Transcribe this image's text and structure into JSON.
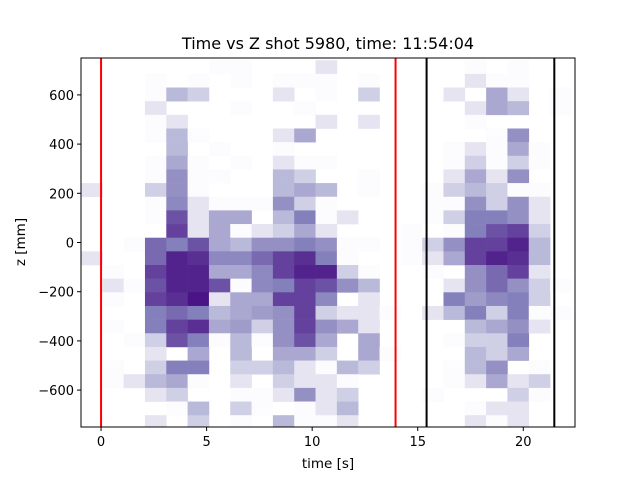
{
  "chart_data": {
    "type": "heatmap",
    "title": "Time vs Z shot 5980, time: 11:54:04",
    "xlabel": "time [s]",
    "ylabel": "z [mm]",
    "xlim": [
      -0.95,
      22.45
    ],
    "ylim": [
      -750,
      750
    ],
    "xticks": [
      0,
      5,
      10,
      15,
      20
    ],
    "xtick_labels": [
      "0",
      "5",
      "10",
      "15",
      "20"
    ],
    "yticks": [
      600,
      400,
      200,
      0,
      -200,
      -400,
      -600
    ],
    "ytick_labels": [
      "600",
      "400",
      "200",
      "0",
      "−200",
      "−400",
      "−600"
    ],
    "grid": false,
    "colormap": "Purples",
    "x_bin_start": -0.95,
    "x_bin_width": 1.01,
    "z_bin_top": 741,
    "z_bin_height": 55.5,
    "intensity_scale": [
      0,
      10
    ],
    "values": [
      [
        0,
        0,
        0,
        0,
        0,
        0,
        1,
        1,
        0,
        0,
        0,
        2,
        0,
        0,
        0,
        0,
        0,
        0,
        1,
        0,
        1,
        0,
        0
      ],
      [
        0,
        0,
        0,
        1,
        0,
        1,
        0,
        1,
        0,
        1,
        1,
        1,
        0,
        1,
        0,
        0,
        0,
        0,
        2,
        1,
        1,
        0,
        0
      ],
      [
        0,
        0,
        0,
        1,
        4,
        3,
        0,
        0,
        0,
        2,
        0,
        1,
        0,
        3,
        0,
        0,
        0,
        2,
        0,
        5,
        2,
        0,
        1
      ],
      [
        0,
        0,
        0,
        2,
        0,
        0,
        0,
        1,
        0,
        0,
        1,
        0,
        0,
        0,
        0,
        0,
        0,
        0,
        2,
        5,
        4,
        0,
        1
      ],
      [
        0,
        0,
        0,
        1,
        2,
        0,
        0,
        0,
        0,
        0,
        0,
        2,
        0,
        2,
        0,
        0,
        0,
        0,
        1,
        0,
        0,
        0,
        0
      ],
      [
        0,
        0,
        0,
        1,
        4,
        1,
        0,
        0,
        0,
        2,
        5,
        0,
        0,
        0,
        0,
        0,
        0,
        0,
        0,
        1,
        6,
        0,
        0
      ],
      [
        0,
        0,
        0,
        0,
        4,
        0,
        1,
        0,
        0,
        1,
        0,
        0,
        0,
        0,
        0,
        0,
        0,
        1,
        2,
        1,
        5,
        1,
        0
      ],
      [
        0,
        0,
        0,
        1,
        5,
        1,
        0,
        1,
        0,
        2,
        1,
        1,
        0,
        0,
        0,
        0,
        0,
        1,
        3,
        1,
        3,
        1,
        0
      ],
      [
        0,
        0,
        0,
        1,
        6,
        1,
        1,
        0,
        0,
        4,
        3,
        0,
        0,
        1,
        0,
        0,
        0,
        2,
        5,
        2,
        6,
        0,
        0
      ],
      [
        2,
        0,
        0,
        3,
        6,
        1,
        0,
        0,
        0,
        4,
        5,
        4,
        0,
        1,
        0,
        0,
        1,
        3,
        4,
        3,
        1,
        1,
        0
      ],
      [
        0,
        0,
        0,
        1,
        6.5,
        2,
        1,
        1,
        1,
        6,
        3,
        1,
        0,
        0,
        0,
        0,
        1,
        1,
        6,
        3,
        6,
        2,
        0
      ],
      [
        0,
        0,
        0,
        1,
        8,
        2,
        5,
        5,
        0,
        4,
        7,
        1,
        2,
        0,
        0,
        0,
        1,
        3,
        7,
        7,
        6,
        2,
        0
      ],
      [
        0,
        0,
        0,
        0,
        8.5,
        2,
        5,
        1,
        2,
        3,
        5,
        2,
        0,
        0,
        0,
        1,
        0,
        1,
        7,
        8,
        8.5,
        3,
        0
      ],
      [
        0,
        0,
        1,
        7.5,
        7,
        8,
        5,
        4,
        6,
        6,
        7,
        6,
        1,
        1,
        0,
        1,
        3,
        6,
        8.5,
        8.5,
        9.5,
        4,
        0
      ],
      [
        2,
        0,
        0,
        7.5,
        9.5,
        9,
        6.5,
        6.5,
        7.5,
        8.5,
        9,
        7,
        1,
        0,
        0,
        1,
        2,
        5,
        8.5,
        9.5,
        9,
        4,
        0
      ],
      [
        0,
        1,
        0,
        8.5,
        9.5,
        9.5,
        5,
        5,
        6.5,
        8.5,
        9.5,
        9.5,
        3,
        1,
        0,
        0,
        1,
        0,
        6,
        7.5,
        8.5,
        2,
        0
      ],
      [
        0,
        2,
        1,
        8,
        9.5,
        9.5,
        8,
        1,
        6.5,
        7,
        8.5,
        8,
        6,
        4,
        0,
        0,
        0,
        2,
        6,
        7.5,
        6,
        3,
        1
      ],
      [
        0,
        1,
        0,
        8.5,
        9,
        10,
        2,
        5,
        5,
        8.5,
        8.5,
        6.5,
        0,
        2,
        0,
        0,
        0,
        7,
        5.5,
        6.5,
        7,
        3,
        0
      ],
      [
        0,
        0,
        0,
        7,
        7.5,
        7,
        4,
        5,
        5.5,
        6,
        8.5,
        3,
        2,
        2,
        1,
        0,
        2,
        4,
        7,
        3,
        7,
        1,
        1
      ],
      [
        0,
        1,
        0,
        7,
        8.5,
        9,
        5,
        5.5,
        3,
        6,
        8.5,
        6,
        5,
        2,
        0,
        0,
        0,
        0,
        4,
        5,
        6,
        2,
        0
      ],
      [
        0,
        0,
        1,
        3,
        8,
        7,
        1,
        4,
        1,
        6,
        8,
        5,
        0,
        5,
        0,
        0,
        0,
        1,
        3,
        3,
        7,
        0,
        0
      ],
      [
        0,
        0,
        0,
        2,
        0,
        5,
        0,
        4,
        0,
        5,
        5,
        3,
        0,
        5,
        1,
        0,
        0,
        0,
        4,
        3,
        5,
        0,
        0
      ],
      [
        0,
        1,
        0,
        3,
        7,
        7,
        0,
        3,
        3,
        4,
        2,
        1,
        4,
        3,
        0,
        0,
        0,
        1,
        4,
        6,
        0,
        1,
        0
      ],
      [
        0,
        1,
        2,
        4,
        5,
        1,
        0,
        2,
        0,
        3,
        2,
        2,
        1,
        0,
        0,
        0,
        0,
        1,
        2,
        5,
        2,
        3,
        0
      ],
      [
        0,
        0,
        0,
        2,
        3,
        0,
        0,
        1,
        1,
        2,
        6,
        2,
        3,
        0,
        0,
        0,
        1,
        0,
        0,
        0,
        3,
        1,
        0
      ],
      [
        0,
        0,
        0,
        0,
        1,
        4,
        0,
        3,
        1,
        0,
        1,
        2,
        4,
        0,
        0,
        0,
        0,
        0,
        1,
        2,
        2,
        0,
        0
      ],
      [
        0,
        0,
        0,
        2,
        0,
        3,
        0,
        1,
        0,
        4,
        1,
        1,
        2,
        0,
        0,
        0,
        0,
        0,
        2,
        1,
        2,
        0,
        0
      ]
    ],
    "vertical_lines": [
      {
        "x": 0,
        "color": "#ff0000"
      },
      {
        "x": 13.95,
        "color": "#ff0000"
      },
      {
        "x": 15.42,
        "color": "#000000"
      },
      {
        "x": 21.47,
        "color": "#000000"
      }
    ]
  }
}
